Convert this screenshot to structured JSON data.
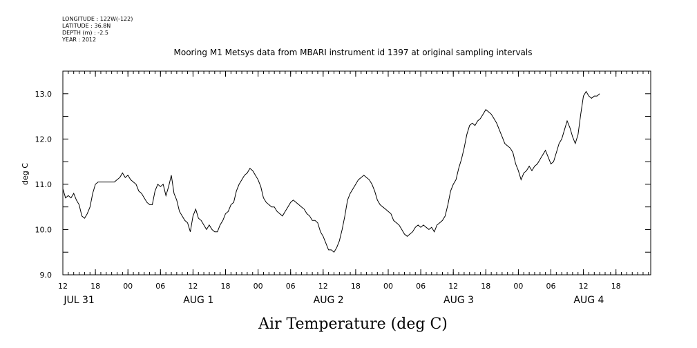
{
  "meta": {
    "longitude": "LONGITUDE : 122W(-122)",
    "latitude": "LATITUDE : 36.8N",
    "depth": "DEPTH (m) : -2.5",
    "year": "YEAR : 2012"
  },
  "chart_data": {
    "type": "line",
    "title": "Mooring M1 Metsys data from MBARI instrument id 1397 at original sampling intervals",
    "xlabel": "Air Temperature (deg C)",
    "ylabel": "deg C",
    "ylim": [
      9.0,
      13.5
    ],
    "yticks": [
      "9.0",
      "10.0",
      "11.0",
      "12.0",
      "13.0"
    ],
    "x_unit": "hours since 2012-07-31 00:00 (axis shows JUL 31 12:00 through AUG 4 ~23:00)",
    "xlim": [
      12,
      114
    ],
    "xticks": [
      {
        "h": 12,
        "label": "12"
      },
      {
        "h": 18,
        "label": "18"
      },
      {
        "h": 24,
        "label": "00"
      },
      {
        "h": 30,
        "label": "06"
      },
      {
        "h": 36,
        "label": "12"
      },
      {
        "h": 42,
        "label": "18"
      },
      {
        "h": 48,
        "label": "00"
      },
      {
        "h": 54,
        "label": "06"
      },
      {
        "h": 60,
        "label": "12"
      },
      {
        "h": 66,
        "label": "18"
      },
      {
        "h": 72,
        "label": "00"
      },
      {
        "h": 78,
        "label": "06"
      },
      {
        "h": 84,
        "label": "12"
      },
      {
        "h": 90,
        "label": "18"
      },
      {
        "h": 96,
        "label": "00"
      },
      {
        "h": 102,
        "label": "06"
      },
      {
        "h": 108,
        "label": "12"
      },
      {
        "h": 114,
        "label": "18"
      }
    ],
    "day_labels": [
      {
        "h": 15,
        "label": "JUL 31"
      },
      {
        "h": 37,
        "label": "AUG  1"
      },
      {
        "h": 61,
        "label": "AUG  2"
      },
      {
        "h": 85,
        "label": "AUG  3"
      },
      {
        "h": 109,
        "label": "AUG  4"
      }
    ],
    "grid": false,
    "series": [
      {
        "points": [
          [
            12.0,
            10.9
          ],
          [
            12.5,
            10.7
          ],
          [
            13.0,
            10.75
          ],
          [
            13.5,
            10.7
          ],
          [
            14.0,
            10.8
          ],
          [
            14.5,
            10.65
          ],
          [
            15.0,
            10.55
          ],
          [
            15.5,
            10.3
          ],
          [
            16.0,
            10.25
          ],
          [
            16.5,
            10.35
          ],
          [
            17.0,
            10.5
          ],
          [
            17.5,
            10.8
          ],
          [
            18.0,
            11.0
          ],
          [
            18.5,
            11.05
          ],
          [
            19.0,
            11.05
          ],
          [
            20.0,
            11.05
          ],
          [
            21.0,
            11.05
          ],
          [
            21.5,
            11.05
          ],
          [
            22.0,
            11.1
          ],
          [
            22.5,
            11.15
          ],
          [
            23.0,
            11.25
          ],
          [
            23.5,
            11.15
          ],
          [
            24.0,
            11.2
          ],
          [
            24.5,
            11.1
          ],
          [
            25.0,
            11.05
          ],
          [
            25.5,
            11.0
          ],
          [
            26.0,
            10.85
          ],
          [
            26.5,
            10.8
          ],
          [
            27.0,
            10.7
          ],
          [
            27.5,
            10.6
          ],
          [
            28.0,
            10.55
          ],
          [
            28.5,
            10.55
          ],
          [
            29.0,
            10.85
          ],
          [
            29.5,
            11.0
          ],
          [
            30.0,
            10.95
          ],
          [
            30.5,
            11.0
          ],
          [
            31.0,
            10.75
          ],
          [
            31.5,
            10.95
          ],
          [
            32.0,
            11.2
          ],
          [
            32.5,
            10.8
          ],
          [
            33.0,
            10.65
          ],
          [
            33.5,
            10.4
          ],
          [
            34.0,
            10.3
          ],
          [
            34.5,
            10.2
          ],
          [
            35.0,
            10.15
          ],
          [
            35.5,
            9.95
          ],
          [
            36.0,
            10.3
          ],
          [
            36.5,
            10.45
          ],
          [
            37.0,
            10.25
          ],
          [
            37.5,
            10.2
          ],
          [
            38.0,
            10.1
          ],
          [
            38.5,
            10.0
          ],
          [
            39.0,
            10.1
          ],
          [
            39.5,
            10.0
          ],
          [
            40.0,
            9.95
          ],
          [
            40.5,
            9.95
          ],
          [
            41.0,
            10.1
          ],
          [
            41.5,
            10.2
          ],
          [
            42.0,
            10.35
          ],
          [
            42.5,
            10.4
          ],
          [
            43.0,
            10.55
          ],
          [
            43.5,
            10.6
          ],
          [
            44.0,
            10.85
          ],
          [
            44.5,
            11.0
          ],
          [
            45.0,
            11.1
          ],
          [
            45.5,
            11.2
          ],
          [
            46.0,
            11.25
          ],
          [
            46.5,
            11.35
          ],
          [
            47.0,
            11.3
          ],
          [
            47.5,
            11.2
          ],
          [
            48.0,
            11.1
          ],
          [
            48.5,
            10.95
          ],
          [
            49.0,
            10.7
          ],
          [
            49.5,
            10.6
          ],
          [
            50.0,
            10.55
          ],
          [
            50.5,
            10.5
          ],
          [
            51.0,
            10.5
          ],
          [
            51.5,
            10.4
          ],
          [
            52.0,
            10.35
          ],
          [
            52.5,
            10.3
          ],
          [
            53.0,
            10.4
          ],
          [
            53.5,
            10.5
          ],
          [
            54.0,
            10.6
          ],
          [
            54.5,
            10.65
          ],
          [
            55.0,
            10.6
          ],
          [
            55.5,
            10.55
          ],
          [
            56.0,
            10.5
          ],
          [
            56.5,
            10.45
          ],
          [
            57.0,
            10.35
          ],
          [
            57.5,
            10.3
          ],
          [
            58.0,
            10.2
          ],
          [
            58.5,
            10.2
          ],
          [
            59.0,
            10.15
          ],
          [
            59.5,
            9.95
          ],
          [
            60.0,
            9.85
          ],
          [
            60.5,
            9.7
          ],
          [
            61.0,
            9.55
          ],
          [
            61.5,
            9.55
          ],
          [
            62.0,
            9.5
          ],
          [
            62.5,
            9.6
          ],
          [
            63.0,
            9.75
          ],
          [
            63.5,
            10.0
          ],
          [
            64.0,
            10.3
          ],
          [
            64.5,
            10.65
          ],
          [
            65.0,
            10.8
          ],
          [
            65.5,
            10.9
          ],
          [
            66.0,
            11.0
          ],
          [
            66.5,
            11.1
          ],
          [
            67.0,
            11.15
          ],
          [
            67.5,
            11.2
          ],
          [
            68.0,
            11.15
          ],
          [
            68.5,
            11.1
          ],
          [
            69.0,
            11.0
          ],
          [
            69.5,
            10.85
          ],
          [
            70.0,
            10.65
          ],
          [
            70.5,
            10.55
          ],
          [
            71.0,
            10.5
          ],
          [
            71.5,
            10.45
          ],
          [
            72.0,
            10.4
          ],
          [
            72.5,
            10.35
          ],
          [
            73.0,
            10.2
          ],
          [
            73.5,
            10.15
          ],
          [
            74.0,
            10.1
          ],
          [
            74.5,
            10.0
          ],
          [
            75.0,
            9.9
          ],
          [
            75.5,
            9.85
          ],
          [
            76.0,
            9.9
          ],
          [
            76.5,
            9.95
          ],
          [
            77.0,
            10.05
          ],
          [
            77.5,
            10.1
          ],
          [
            78.0,
            10.05
          ],
          [
            78.5,
            10.1
          ],
          [
            79.0,
            10.05
          ],
          [
            79.5,
            10.0
          ],
          [
            80.0,
            10.05
          ],
          [
            80.5,
            9.95
          ],
          [
            81.0,
            10.1
          ],
          [
            81.5,
            10.15
          ],
          [
            82.0,
            10.2
          ],
          [
            82.5,
            10.3
          ],
          [
            83.0,
            10.55
          ],
          [
            83.5,
            10.85
          ],
          [
            84.0,
            11.0
          ],
          [
            84.5,
            11.1
          ],
          [
            85.0,
            11.35
          ],
          [
            85.5,
            11.55
          ],
          [
            86.0,
            11.8
          ],
          [
            86.5,
            12.1
          ],
          [
            87.0,
            12.3
          ],
          [
            87.5,
            12.35
          ],
          [
            88.0,
            12.3
          ],
          [
            88.5,
            12.4
          ],
          [
            89.0,
            12.45
          ],
          [
            89.5,
            12.55
          ],
          [
            90.0,
            12.65
          ],
          [
            90.5,
            12.6
          ],
          [
            91.0,
            12.55
          ],
          [
            91.5,
            12.45
          ],
          [
            92.0,
            12.35
          ],
          [
            92.5,
            12.2
          ],
          [
            93.0,
            12.05
          ],
          [
            93.5,
            11.9
          ],
          [
            94.0,
            11.85
          ],
          [
            94.5,
            11.8
          ],
          [
            95.0,
            11.7
          ],
          [
            95.5,
            11.45
          ],
          [
            96.0,
            11.3
          ],
          [
            96.5,
            11.1
          ],
          [
            97.0,
            11.25
          ],
          [
            97.5,
            11.3
          ],
          [
            98.0,
            11.4
          ],
          [
            98.5,
            11.3
          ],
          [
            99.0,
            11.4
          ],
          [
            99.5,
            11.45
          ],
          [
            100.0,
            11.55
          ],
          [
            100.5,
            11.65
          ],
          [
            101.0,
            11.75
          ],
          [
            101.5,
            11.6
          ],
          [
            102.0,
            11.45
          ],
          [
            102.5,
            11.5
          ],
          [
            103.0,
            11.7
          ],
          [
            103.5,
            11.9
          ],
          [
            104.0,
            12.0
          ],
          [
            104.5,
            12.2
          ],
          [
            105.0,
            12.4
          ],
          [
            105.5,
            12.25
          ],
          [
            106.0,
            12.05
          ],
          [
            106.5,
            11.9
          ],
          [
            107.0,
            12.1
          ],
          [
            107.5,
            12.55
          ],
          [
            108.0,
            12.95
          ],
          [
            108.5,
            13.05
          ],
          [
            109.0,
            12.95
          ],
          [
            109.5,
            12.9
          ],
          [
            110.0,
            12.95
          ],
          [
            110.5,
            12.95
          ],
          [
            111.0,
            13.0
          ]
        ]
      }
    ]
  }
}
